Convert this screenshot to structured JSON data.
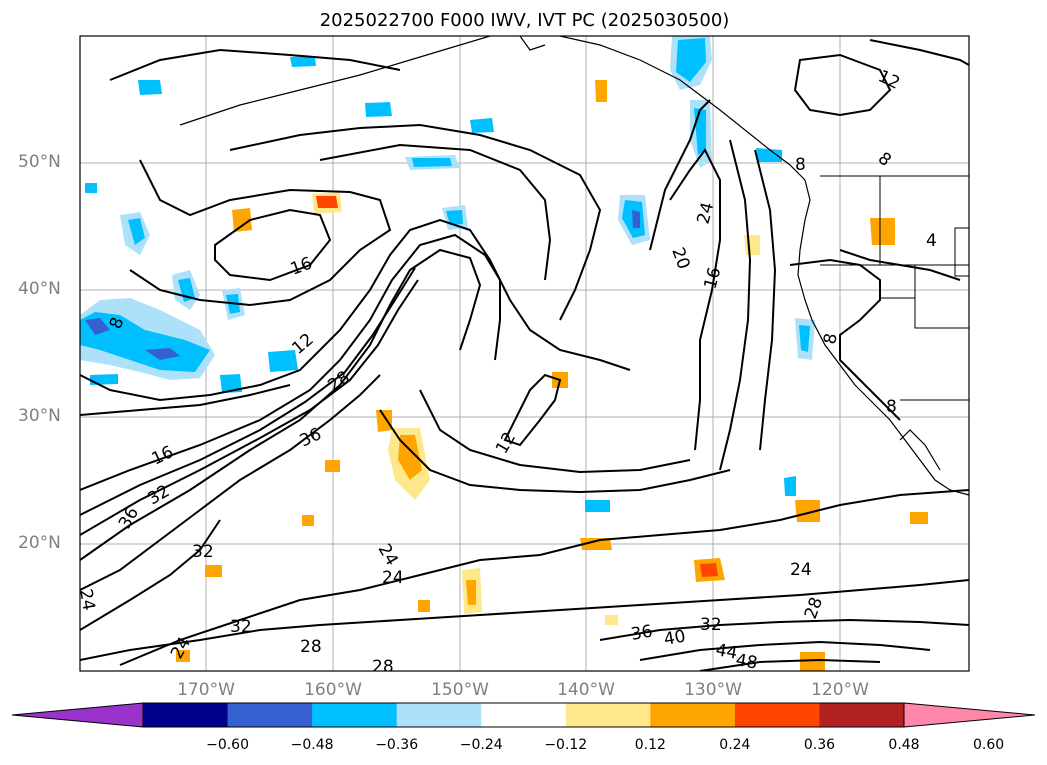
{
  "title": "2025022700 F000 IWV, IVT PC (2025030500)",
  "lat_labels": [
    "50°N",
    "40°N",
    "30°N",
    "20°N"
  ],
  "lon_labels": [
    "170°W",
    "160°W",
    "150°W",
    "140°W",
    "130°W",
    "120°W"
  ],
  "colorbar": {
    "ticks": [
      "−0.60",
      "−0.48",
      "−0.36",
      "−0.24",
      "−0.12",
      "0.12",
      "0.24",
      "0.36",
      "0.48",
      "0.60"
    ],
    "colors": [
      "#9933cc",
      "#00008b",
      "#3560d0",
      "#00bfff",
      "#ade1fa",
      "#ffffff",
      "#ffe88c",
      "#ffa500",
      "#ff4500",
      "#b22222",
      "#ff88aa"
    ]
  },
  "contour_labels": [
    "12",
    "16",
    "8",
    "12",
    "20",
    "24",
    "12",
    "16",
    "28",
    "36",
    "32",
    "36",
    "32",
    "24",
    "24",
    "24",
    "28",
    "32",
    "28",
    "24",
    "36",
    "40",
    "32",
    "44",
    "48",
    "24",
    "28",
    "8",
    "8",
    "8",
    "8",
    "4",
    "16"
  ]
}
